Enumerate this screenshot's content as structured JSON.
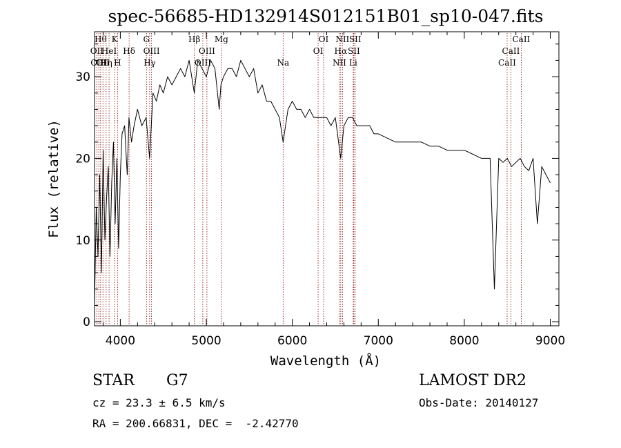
{
  "chart_data": {
    "type": "line",
    "title": "spec-56685-HD132914S012151B01_sp10-047.fits",
    "xlabel": "Wavelength (Å)",
    "ylabel": "Flux (relative)",
    "xlim": [
      3700,
      9100
    ],
    "ylim": [
      -0.5,
      35.5
    ],
    "xticks": [
      4000,
      5000,
      6000,
      7000,
      8000,
      9000
    ],
    "yticks": [
      0,
      10,
      20,
      30
    ],
    "grid": false,
    "series": [
      {
        "x": [
          3700,
          3720,
          3740,
          3760,
          3780,
          3800,
          3820,
          3840,
          3860,
          3880,
          3900,
          3920,
          3940,
          3960,
          3980,
          4000,
          4020,
          4050,
          4080,
          4100,
          4130,
          4160,
          4200,
          4250,
          4300,
          4340,
          4380,
          4420,
          4460,
          4500,
          4550,
          4600,
          4650,
          4700,
          4750,
          4800,
          4860,
          4900,
          4950,
          5000,
          5050,
          5100,
          5150,
          5170,
          5200,
          5250,
          5300,
          5350,
          5400,
          5450,
          5500,
          5550,
          5600,
          5650,
          5700,
          5750,
          5800,
          5850,
          5893,
          5950,
          6000,
          6050,
          6100,
          6150,
          6200,
          6250,
          6300,
          6350,
          6400,
          6450,
          6500,
          6563,
          6600,
          6650,
          6700,
          6750,
          6800,
          6850,
          6900,
          6950,
          7000,
          7100,
          7200,
          7300,
          7400,
          7500,
          7600,
          7700,
          7800,
          7900,
          8000,
          8100,
          8200,
          8300,
          8350,
          8400,
          8450,
          8500,
          8550,
          8600,
          8650,
          8700,
          8750,
          8800,
          8850,
          8900,
          8950,
          9000
        ],
        "y": [
          2,
          14,
          8,
          18,
          6,
          21,
          10,
          15,
          19,
          8,
          17,
          22,
          12,
          20,
          9,
          18,
          23,
          24,
          18,
          25,
          22,
          24,
          26,
          24,
          25,
          20,
          28,
          27,
          29,
          28,
          30,
          29,
          30,
          31,
          30,
          32,
          28,
          32,
          31,
          30,
          32,
          31,
          26,
          29,
          30,
          31,
          31,
          30,
          32,
          31,
          30,
          31,
          28,
          29,
          27,
          27,
          26,
          25,
          22,
          26,
          27,
          26,
          26,
          25,
          26,
          25,
          25,
          25,
          25,
          24,
          25,
          20,
          24,
          25,
          25,
          24,
          24,
          24,
          24,
          23,
          23,
          22.5,
          22,
          22,
          22,
          22,
          21.5,
          21.5,
          21,
          21,
          21,
          20.5,
          20,
          20,
          4,
          20,
          19.5,
          20,
          19,
          19.5,
          20,
          19,
          18.5,
          20,
          12,
          19,
          18,
          17
        ]
      }
    ],
    "line_markers": [
      {
        "x": 3727,
        "label": "OII",
        "row": 2
      },
      {
        "x": 3750,
        "label": "OIII",
        "row": 3
      },
      {
        "x": 3771,
        "label": "Hθ",
        "row": 1
      },
      {
        "x": 3798,
        "label": "OII",
        "row": 3
      },
      {
        "x": 3835,
        "label": "Hη",
        "row": 3
      },
      {
        "x": 3869,
        "label": "HeI",
        "row": 2
      },
      {
        "x": 3934,
        "label": "K",
        "row": 1
      },
      {
        "x": 3968,
        "label": "H",
        "row": 3
      },
      {
        "x": 4102,
        "label": "Hδ",
        "row": 2
      },
      {
        "x": 4304,
        "label": "G",
        "row": 1
      },
      {
        "x": 4341,
        "label": "Hγ",
        "row": 3
      },
      {
        "x": 4363,
        "label": "OIII",
        "row": 2
      },
      {
        "x": 4861,
        "label": "Hβ",
        "row": 1
      },
      {
        "x": 4959,
        "label": "OIII",
        "row": 3
      },
      {
        "x": 5007,
        "label": "OIII",
        "row": 2
      },
      {
        "x": 5175,
        "label": "Mg",
        "row": 1
      },
      {
        "x": 5893,
        "label": "Na",
        "row": 3
      },
      {
        "x": 6300,
        "label": "OI",
        "row": 2
      },
      {
        "x": 6364,
        "label": "OI",
        "row": 1
      },
      {
        "x": 6548,
        "label": "NII",
        "row": 3
      },
      {
        "x": 6563,
        "label": "Hα",
        "row": 2
      },
      {
        "x": 6583,
        "label": "NII",
        "row": 1
      },
      {
        "x": 6708,
        "label": "Li",
        "row": 3
      },
      {
        "x": 6716,
        "label": "SII",
        "row": 2
      },
      {
        "x": 6731,
        "label": "SII",
        "row": 1
      },
      {
        "x": 8498,
        "label": "CaII",
        "row": 3
      },
      {
        "x": 8542,
        "label": "CaII",
        "row": 2
      },
      {
        "x": 8662,
        "label": "CaII",
        "row": 1
      }
    ]
  },
  "info": {
    "object_class": "STAR",
    "subclass": "G7",
    "survey": "LAMOST DR2",
    "cz_line": "cz = 23.3 ± 6.5 km/s",
    "obs_date_line": "Obs-Date: 20140127",
    "radec_line": "RA = 200.66831, DEC =  -2.42770"
  },
  "colors": {
    "spectrum": "#000000",
    "marker_line": "#8b0000",
    "axis": "#000000"
  }
}
